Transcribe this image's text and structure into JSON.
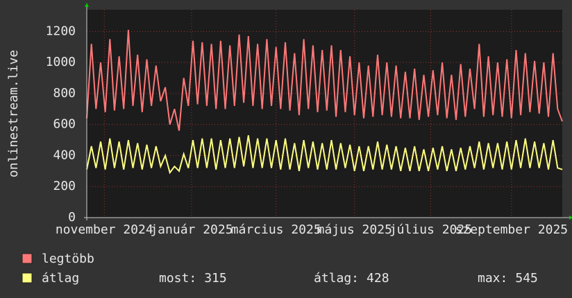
{
  "chart_data": {
    "type": "line",
    "y_label": "onlinestream.live",
    "xlim": [
      0,
      103
    ],
    "xticks": [
      {
        "value": 3.8,
        "label": "november 2024"
      },
      {
        "value": 22.7,
        "label": "január 2025"
      },
      {
        "value": 41,
        "label": "március 2025"
      },
      {
        "value": 58,
        "label": "május 2025"
      },
      {
        "value": 74.5,
        "label": "július 2025"
      },
      {
        "value": 92,
        "label": "szeptember 2025"
      }
    ],
    "ylim": [
      0,
      1340
    ],
    "yticks": [
      0,
      200,
      400,
      600,
      800,
      1000,
      1200
    ],
    "grid": true,
    "series": [
      {
        "name": "legtöbb",
        "color": "#ff7878",
        "values": [
          640,
          1120,
          700,
          1000,
          680,
          1150,
          690,
          1040,
          700,
          1210,
          720,
          1050,
          680,
          1020,
          720,
          980,
          750,
          840,
          600,
          700,
          560,
          900,
          720,
          1140,
          730,
          1130,
          720,
          1120,
          700,
          1140,
          700,
          1110,
          720,
          1180,
          740,
          1170,
          720,
          1120,
          700,
          1150,
          720,
          1100,
          700,
          1130,
          690,
          1060,
          660,
          1150,
          700,
          1110,
          680,
          1080,
          690,
          1110,
          650,
          1080,
          680,
          1040,
          660,
          1000,
          640,
          980,
          650,
          1050,
          660,
          1000,
          650,
          980,
          640,
          940,
          640,
          960,
          630,
          920,
          650,
          950,
          660,
          1000,
          640,
          920,
          630,
          990,
          650,
          960,
          700,
          1120,
          650,
          1040,
          660,
          1000,
          650,
          1020,
          640,
          1080,
          660,
          1060,
          680,
          1010,
          670,
          1000,
          650,
          1060,
          700,
          620
        ]
      },
      {
        "name": "átlag",
        "color": "#ffff80",
        "values": [
          310,
          460,
          320,
          490,
          310,
          510,
          320,
          490,
          310,
          500,
          320,
          480,
          310,
          470,
          320,
          460,
          330,
          400,
          290,
          330,
          300,
          410,
          320,
          500,
          320,
          510,
          320,
          510,
          310,
          500,
          320,
          510,
          320,
          520,
          330,
          530,
          320,
          510,
          320,
          510,
          320,
          500,
          310,
          510,
          310,
          480,
          300,
          500,
          320,
          490,
          310,
          480,
          310,
          500,
          310,
          480,
          320,
          470,
          300,
          460,
          300,
          460,
          310,
          490,
          310,
          470,
          310,
          460,
          300,
          450,
          300,
          460,
          300,
          440,
          300,
          450,
          310,
          460,
          300,
          440,
          300,
          450,
          310,
          460,
          320,
          490,
          310,
          480,
          320,
          480,
          310,
          490,
          310,
          500,
          320,
          510,
          320,
          490,
          320,
          480,
          310,
          500,
          320,
          310
        ]
      }
    ],
    "stats": [
      {
        "label": "most:",
        "value": 315
      },
      {
        "label": "átlag:",
        "value": 428
      },
      {
        "label": "max:",
        "value": 545
      }
    ]
  }
}
